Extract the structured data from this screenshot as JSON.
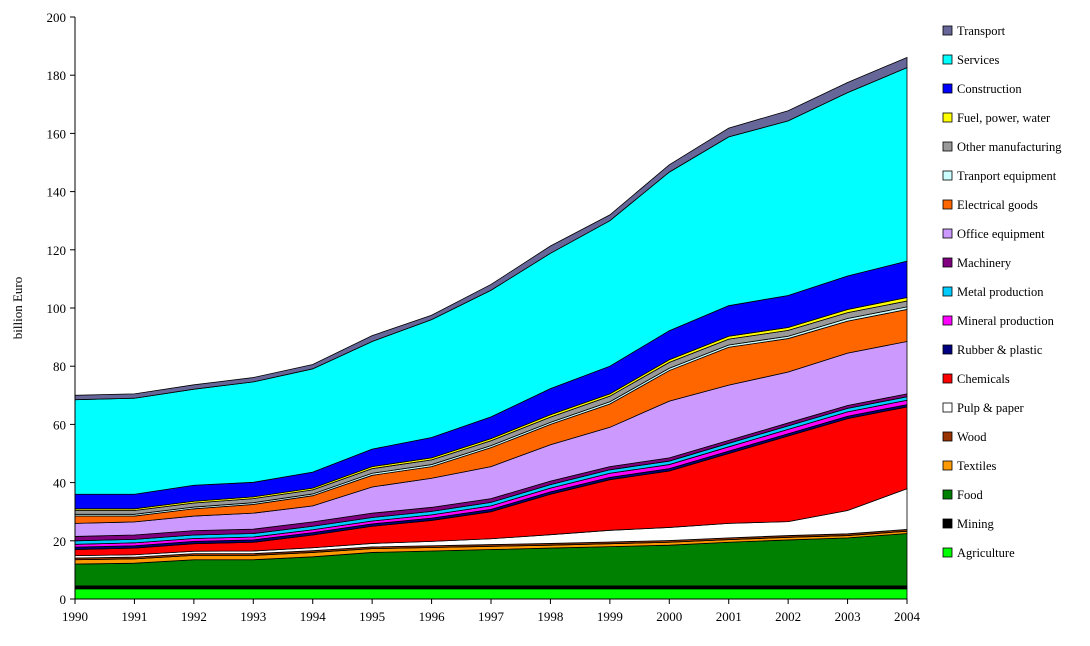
{
  "chart_data": {
    "type": "stacked-area",
    "y_label": "billion Euro",
    "categories": [
      "1990",
      "1991",
      "1992",
      "1993",
      "1994",
      "1995",
      "1996",
      "1997",
      "1998",
      "1999",
      "2000",
      "2001",
      "2002",
      "2003",
      "2004"
    ],
    "ylim": [
      0,
      200
    ],
    "yticks": [
      0,
      20,
      40,
      60,
      80,
      100,
      120,
      140,
      160,
      180,
      200
    ],
    "series": [
      {
        "name": "Agriculture",
        "color": "#00ff00",
        "values": [
          3.5,
          3.5,
          3.5,
          3.5,
          3.5,
          3.5,
          3.5,
          3.5,
          3.5,
          3.5,
          3.5,
          3.5,
          3.5,
          3.5,
          3.5
        ]
      },
      {
        "name": "Mining",
        "color": "#000000",
        "values": [
          1,
          1,
          1,
          1,
          1,
          1,
          1,
          1,
          1,
          1,
          1,
          1,
          1,
          1,
          1
        ]
      },
      {
        "name": "Food",
        "color": "#008000",
        "values": [
          7.5,
          7.8,
          9,
          9,
          10,
          11.5,
          12,
          12.5,
          13,
          13.5,
          14,
          15,
          15.8,
          16.5,
          18
        ]
      },
      {
        "name": "Textiles",
        "color": "#ff9900",
        "values": [
          1.5,
          1.5,
          1.5,
          1.5,
          1.5,
          1.3,
          1.2,
          1.1,
          1,
          1,
          1,
          0.9,
          0.9,
          0.8,
          0.8
        ]
      },
      {
        "name": "Wood",
        "color": "#993300",
        "values": [
          0.6,
          0.6,
          0.6,
          0.6,
          0.6,
          0.6,
          0.6,
          0.6,
          0.6,
          0.6,
          0.6,
          0.6,
          0.6,
          0.6,
          0.6
        ]
      },
      {
        "name": "Pulp & paper",
        "color": "#ffffff",
        "values": [
          0.8,
          0.8,
          0.8,
          0.9,
          1,
          1.2,
          1.5,
          2,
          3,
          4,
          4.5,
          5,
          4.8,
          8,
          14
        ]
      },
      {
        "name": "Chemicals",
        "color": "#ff0000",
        "values": [
          2.1,
          2.3,
          2.6,
          3,
          4.4,
          5.9,
          7.2,
          9.3,
          13.9,
          17.4,
          19.4,
          24,
          29.4,
          31.6,
          28.1
        ]
      },
      {
        "name": "Rubber & plastic",
        "color": "#000080",
        "values": [
          0.8,
          0.8,
          0.8,
          0.8,
          0.8,
          0.8,
          0.8,
          0.8,
          0.8,
          0.8,
          0.8,
          0.8,
          0.8,
          0.8,
          0.8
        ]
      },
      {
        "name": "Mineral production",
        "color": "#ff00ff",
        "values": [
          1,
          1,
          1,
          1,
          1,
          1,
          1.1,
          1.2,
          1.3,
          1.4,
          1.4,
          1.5,
          1.5,
          1.5,
          1.5
        ]
      },
      {
        "name": "Metal production",
        "color": "#00ccff",
        "values": [
          1.2,
          1.2,
          1.2,
          1.2,
          1.2,
          1.2,
          1.2,
          1.2,
          1.2,
          1.2,
          1.2,
          1.2,
          1.2,
          1.2,
          1.2
        ]
      },
      {
        "name": "Machinery",
        "color": "#800080",
        "values": [
          1.5,
          1.5,
          1.5,
          1.5,
          1.5,
          1.5,
          1.4,
          1.3,
          1.2,
          1.1,
          1.1,
          1,
          1,
          1,
          1
        ]
      },
      {
        "name": "Office equipment",
        "color": "#cc99ff",
        "values": [
          4.5,
          4.5,
          5,
          5.5,
          5.5,
          9,
          10,
          11,
          12.5,
          13.5,
          19.5,
          19,
          17.5,
          18,
          18
        ]
      },
      {
        "name": "Electrical goods",
        "color": "#ff6600",
        "values": [
          2.5,
          2,
          2.5,
          3,
          3.5,
          4,
          4,
          6.5,
          7,
          8,
          10.5,
          13,
          11.5,
          11,
          11
        ]
      },
      {
        "name": "Tranport equipment",
        "color": "#ccffff",
        "values": [
          0.6,
          0.6,
          0.6,
          0.6,
          0.6,
          0.7,
          0.7,
          0.7,
          0.7,
          0.8,
          0.8,
          0.8,
          0.8,
          0.9,
          0.9
        ]
      },
      {
        "name": "Other manufacturing",
        "color": "#999999",
        "values": [
          1.3,
          1.3,
          1.4,
          1.4,
          1.4,
          1.6,
          1.6,
          1.7,
          1.8,
          1.9,
          2,
          2,
          2,
          2,
          2
        ]
      },
      {
        "name": "Fuel, power, water",
        "color": "#ffff00",
        "values": [
          0.6,
          0.6,
          0.6,
          0.6,
          0.6,
          0.7,
          0.7,
          0.7,
          0.8,
          0.8,
          0.9,
          1,
          1,
          1.1,
          1.2
        ]
      },
      {
        "name": "Construction",
        "color": "#0000ff",
        "values": [
          5,
          5,
          5.5,
          5,
          5.5,
          6,
          7,
          7.5,
          9,
          9.5,
          10,
          10.5,
          11,
          11.5,
          12.5
        ]
      },
      {
        "name": "Services",
        "color": "#00ffff",
        "values": [
          32.5,
          33,
          33,
          34.5,
          35.5,
          37,
          40.5,
          43.5,
          46.5,
          50,
          54.5,
          58,
          60,
          63,
          66.5
        ]
      },
      {
        "name": "Transport",
        "color": "#666699",
        "values": [
          1.5,
          1.5,
          1.5,
          1.5,
          1.5,
          2,
          1.5,
          2,
          2.5,
          2,
          2.5,
          3,
          3.5,
          3.5,
          3.5
        ]
      }
    ]
  }
}
